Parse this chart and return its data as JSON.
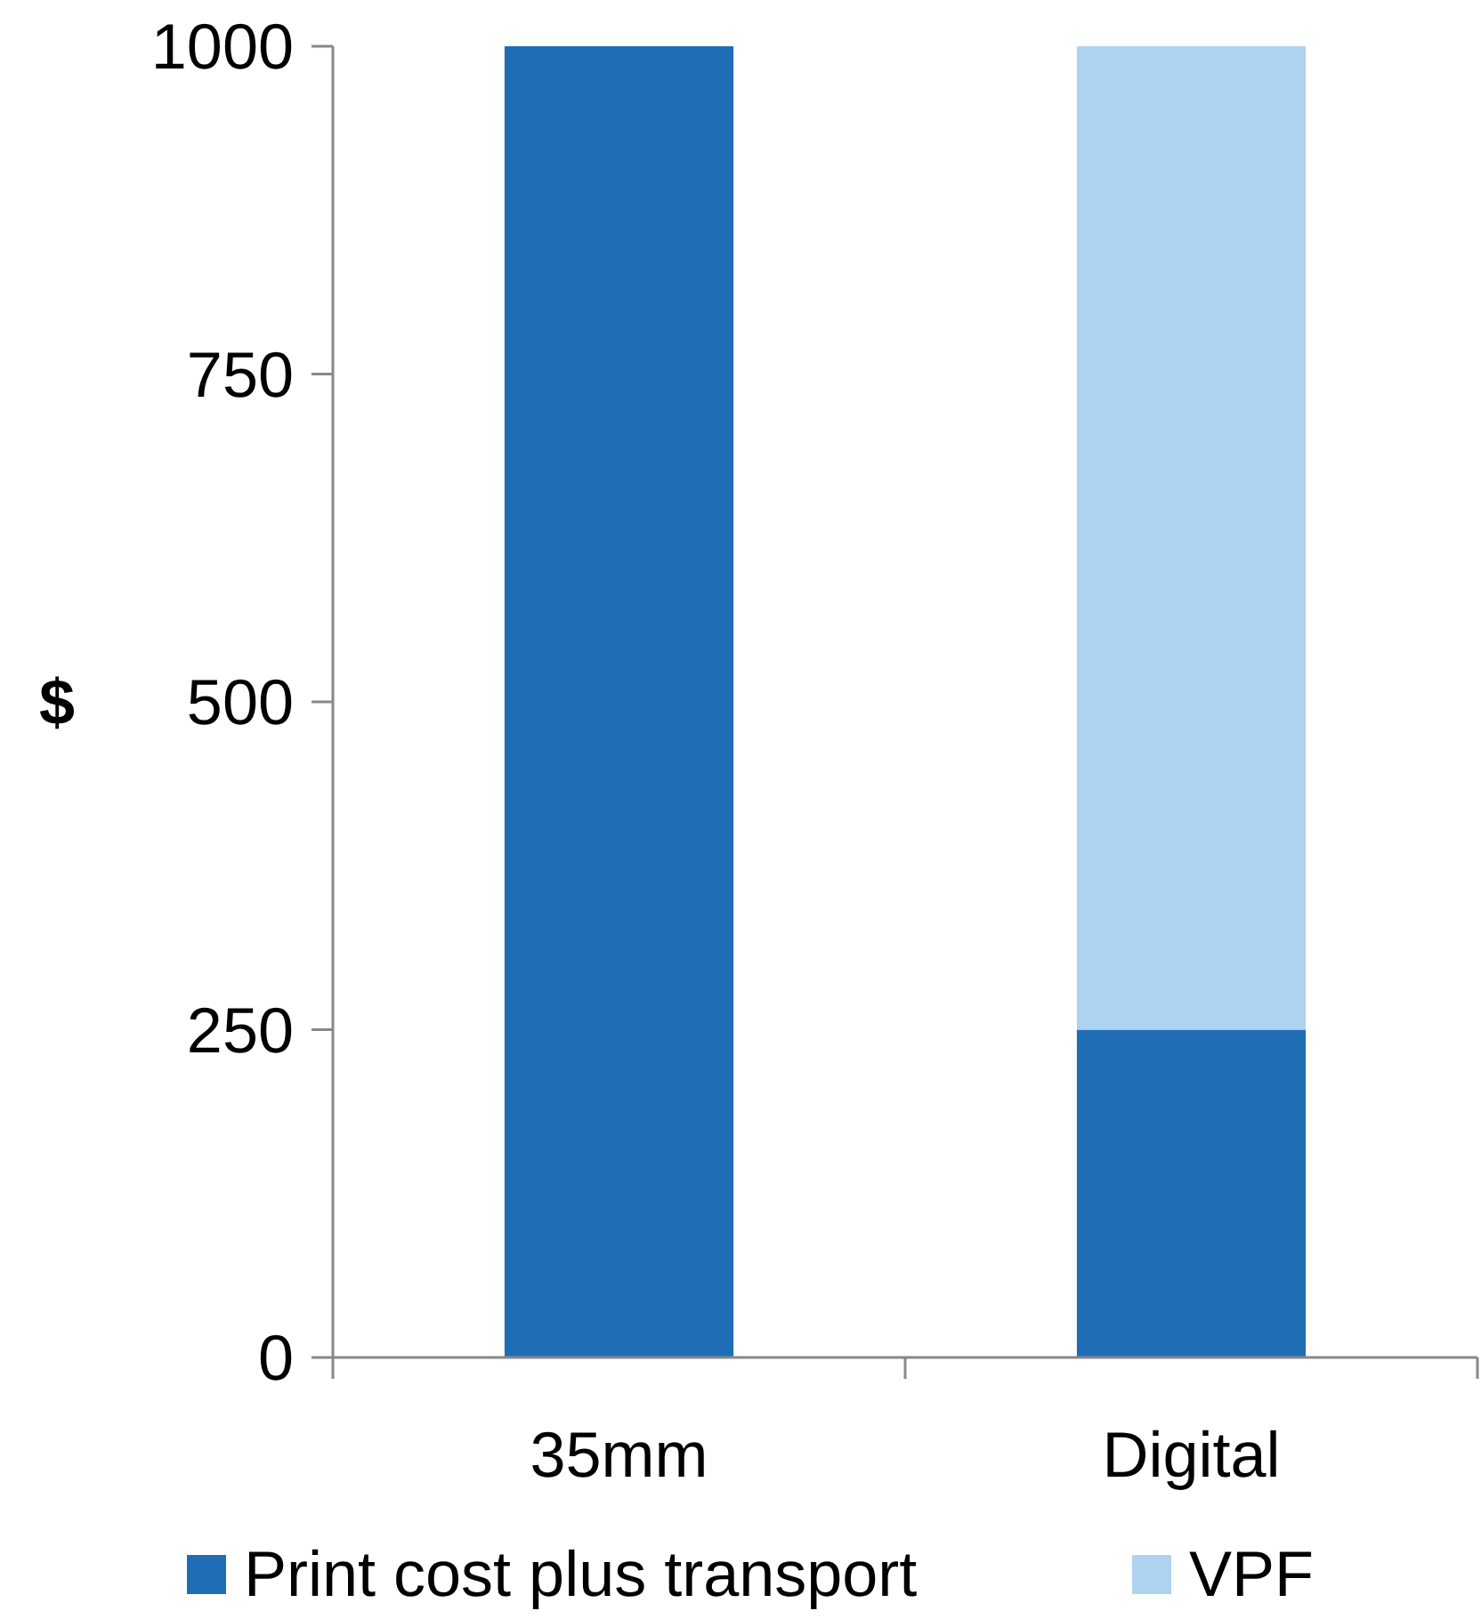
{
  "chart_data": {
    "type": "bar",
    "stacked": true,
    "ylabel": "$",
    "categories": [
      "35mm",
      "Digital"
    ],
    "series": [
      {
        "name": "Print cost plus transport",
        "color": "#1f6eb5",
        "values": [
          1000,
          250
        ]
      },
      {
        "name": "VPF",
        "color": "#aed3f1",
        "values": [
          null,
          750
        ]
      }
    ],
    "ylim": [
      0,
      1000
    ],
    "yticks": [
      0,
      250,
      500,
      750,
      1000
    ],
    "grid": false,
    "legend": "bottom"
  }
}
